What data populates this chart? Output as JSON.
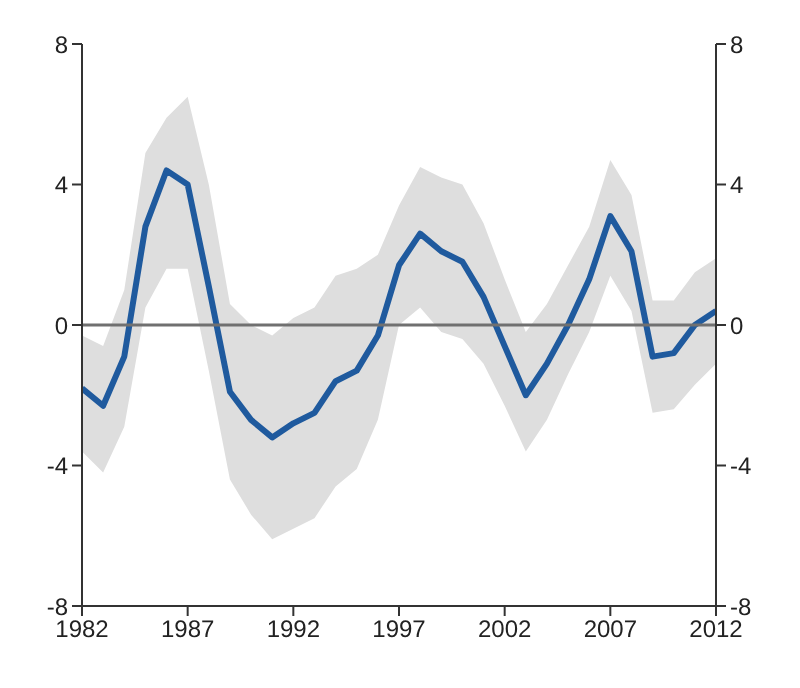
{
  "chart_data": {
    "type": "line",
    "x": [
      1982,
      1983,
      1984,
      1985,
      1986,
      1987,
      1988,
      1989,
      1990,
      1991,
      1992,
      1993,
      1994,
      1995,
      1996,
      1997,
      1998,
      1999,
      2000,
      2001,
      2002,
      2003,
      2004,
      2005,
      2006,
      2007,
      2008,
      2009,
      2010,
      2011,
      2012
    ],
    "series": [
      {
        "color": "#1f5a9e",
        "values": [
          -1.8,
          -2.3,
          -0.9,
          2.8,
          4.4,
          4.0,
          1.1,
          -1.9,
          -2.7,
          -3.2,
          -2.8,
          -2.5,
          -1.6,
          -1.3,
          -0.3,
          1.7,
          2.6,
          2.1,
          1.8,
          0.8,
          -0.6,
          -2.0,
          -1.1,
          0.0,
          1.3,
          3.1,
          2.1,
          -0.9,
          -0.8,
          0.0,
          0.4
        ],
        "lower": [
          -3.6,
          -4.2,
          -2.9,
          0.5,
          1.6,
          1.6,
          -1.3,
          -4.4,
          -5.4,
          -6.1,
          -5.8,
          -5.5,
          -4.6,
          -4.1,
          -2.7,
          0.0,
          0.5,
          -0.2,
          -0.4,
          -1.1,
          -2.3,
          -3.6,
          -2.7,
          -1.4,
          -0.2,
          1.4,
          0.4,
          -2.5,
          -2.4,
          -1.7,
          -1.1
        ],
        "upper": [
          -0.3,
          -0.6,
          1.0,
          4.9,
          5.9,
          6.5,
          4.0,
          0.6,
          0.0,
          -0.3,
          0.2,
          0.5,
          1.4,
          1.6,
          2.0,
          3.4,
          4.5,
          4.2,
          4.0,
          2.9,
          1.3,
          -0.2,
          0.6,
          1.7,
          2.8,
          4.7,
          3.7,
          0.7,
          0.7,
          1.5,
          1.9
        ]
      }
    ],
    "xlim": [
      1982,
      2012
    ],
    "xticks": [
      1982,
      1987,
      1992,
      1997,
      2002,
      2007,
      2012
    ],
    "ylim": [
      -8,
      8
    ],
    "yticks": [
      -8,
      -4,
      0,
      4,
      8
    ],
    "y2lim": [
      -8,
      8
    ],
    "y2ticks": [
      -8,
      -4,
      0,
      4,
      8
    ],
    "ref_lines": [
      {
        "axis": "y",
        "value": 0,
        "color": "#707070"
      }
    ],
    "grid": false,
    "legend": false,
    "marker": "none",
    "line_style": "solid"
  }
}
